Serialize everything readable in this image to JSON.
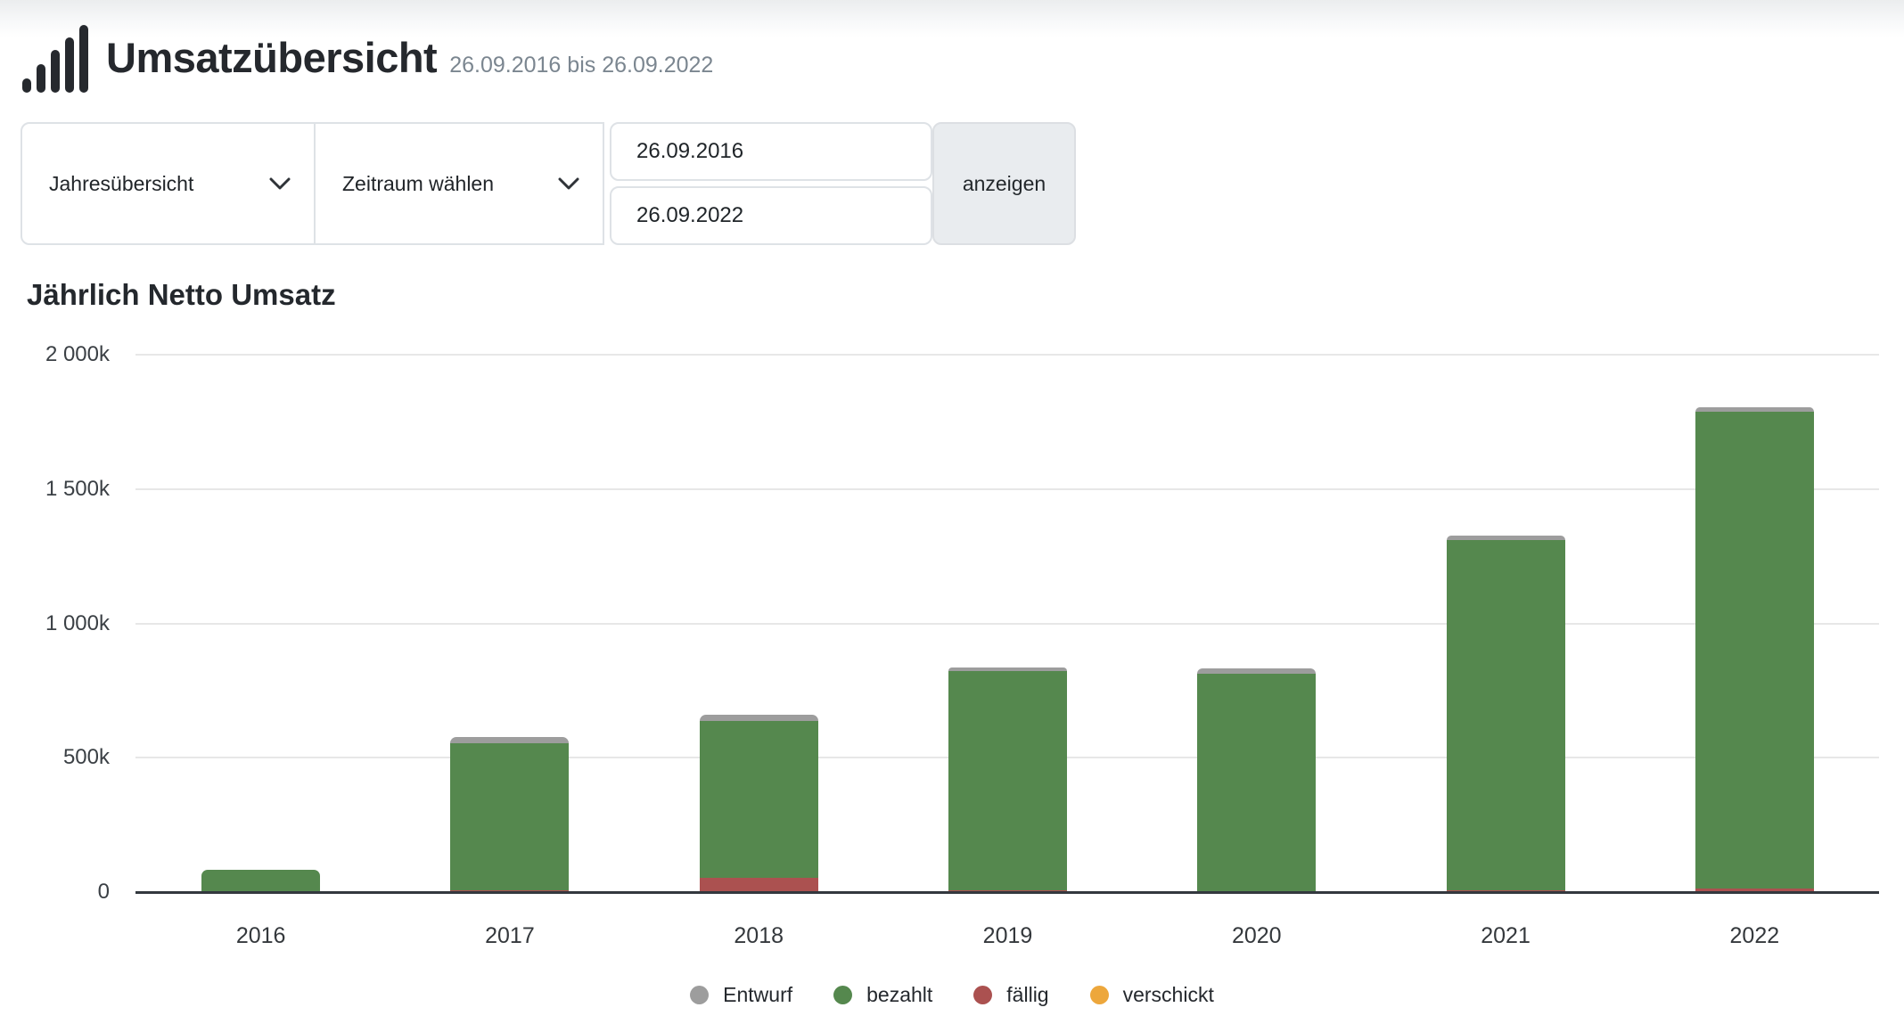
{
  "header": {
    "title": "Umsatzübersicht",
    "subtitle": "26.09.2016 bis 26.09.2022",
    "logo_icon": "bar-chart-icon"
  },
  "controls": {
    "view_select": {
      "value": "Jahresübersicht",
      "icon": "chevron-down-icon"
    },
    "period_select": {
      "value": "Zeitraum wählen",
      "icon": "chevron-down-icon"
    },
    "date_from": "26.09.2016",
    "date_to": "26.09.2022",
    "submit_label": "anzeigen"
  },
  "chart_data": {
    "type": "bar",
    "stacked": true,
    "title": "Jährlich Netto Umsatz",
    "unit": "thousands (k)",
    "categories": [
      "2016",
      "2017",
      "2018",
      "2019",
      "2020",
      "2021",
      "2022"
    ],
    "series": [
      {
        "name": "Entwurf",
        "color": "#9d9d9d",
        "values": [
          0,
          23,
          23,
          13,
          20,
          17,
          17
        ]
      },
      {
        "name": "bezahlt",
        "color": "#55884e",
        "values": [
          83,
          548,
          585,
          817,
          811,
          1305,
          1774
        ]
      },
      {
        "name": "fällig",
        "color": "#ab5150",
        "values": [
          0,
          8,
          53,
          8,
          0,
          8,
          13
        ]
      },
      {
        "name": "verschickt",
        "color": "#eda73c",
        "values": [
          0,
          0,
          0,
          0,
          0,
          0,
          0
        ]
      }
    ],
    "stack_order_top_to_bottom": [
      "Entwurf",
      "bezahlt",
      "fällig",
      "verschickt"
    ],
    "y_ticks": [
      "2 000k",
      "1 500k",
      "1 000k",
      "500k",
      "0"
    ],
    "y_max": 2000,
    "ylim": [
      0,
      2000
    ],
    "grid": true,
    "legend": [
      "Entwurf",
      "bezahlt",
      "fällig",
      "verschickt"
    ],
    "legend_position": "bottom"
  },
  "colors": {
    "axis_line": "#33383e",
    "gridline": "#e7e7e7",
    "button_bg": "#e9ecef",
    "control_border": "#dee2e6",
    "title_text": "#25282d",
    "subtitle_text": "#7b8690"
  }
}
